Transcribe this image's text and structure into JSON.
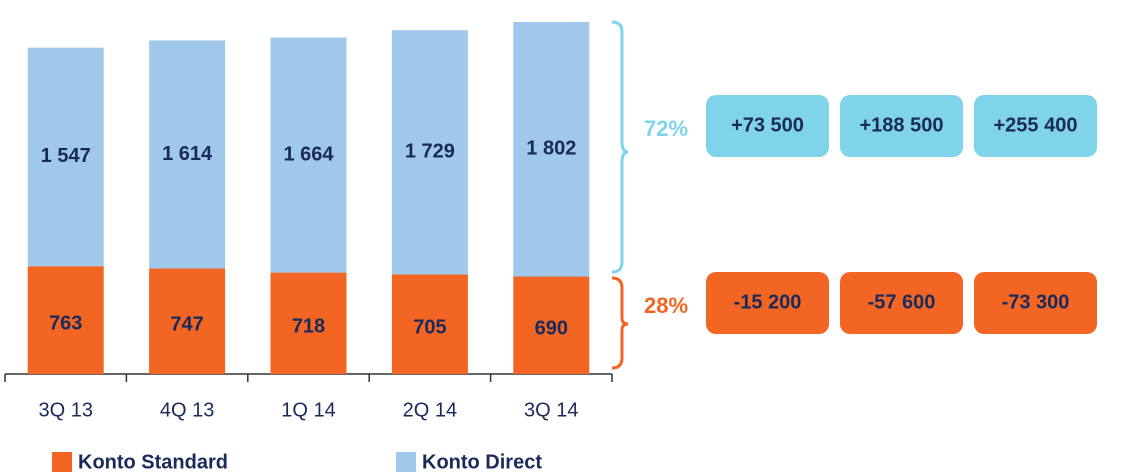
{
  "chart_data": {
    "type": "stacked_bar",
    "categories": [
      "3Q 13",
      "4Q 13",
      "1Q 14",
      "2Q 14",
      "3Q 14"
    ],
    "series": [
      {
        "name": "Konto Standard",
        "color": "#f26522",
        "values": [
          763,
          747,
          718,
          705,
          690
        ]
      },
      {
        "name": "Konto Direct",
        "color": "#9fc8eb",
        "values": [
          1547,
          1614,
          1664,
          1729,
          1802
        ],
        "value_labels": [
          "1 547",
          "1 614",
          "1 664",
          "1 729",
          "1 802"
        ]
      }
    ],
    "legend": "bottom",
    "annotations": {
      "direct_share": "72%",
      "standard_share": "28%",
      "direct_changes": [
        "+73 500",
        "+188 500",
        "+255 400"
      ],
      "standard_changes": [
        "-15 200",
        "-57 600",
        "-73 300"
      ]
    }
  }
}
